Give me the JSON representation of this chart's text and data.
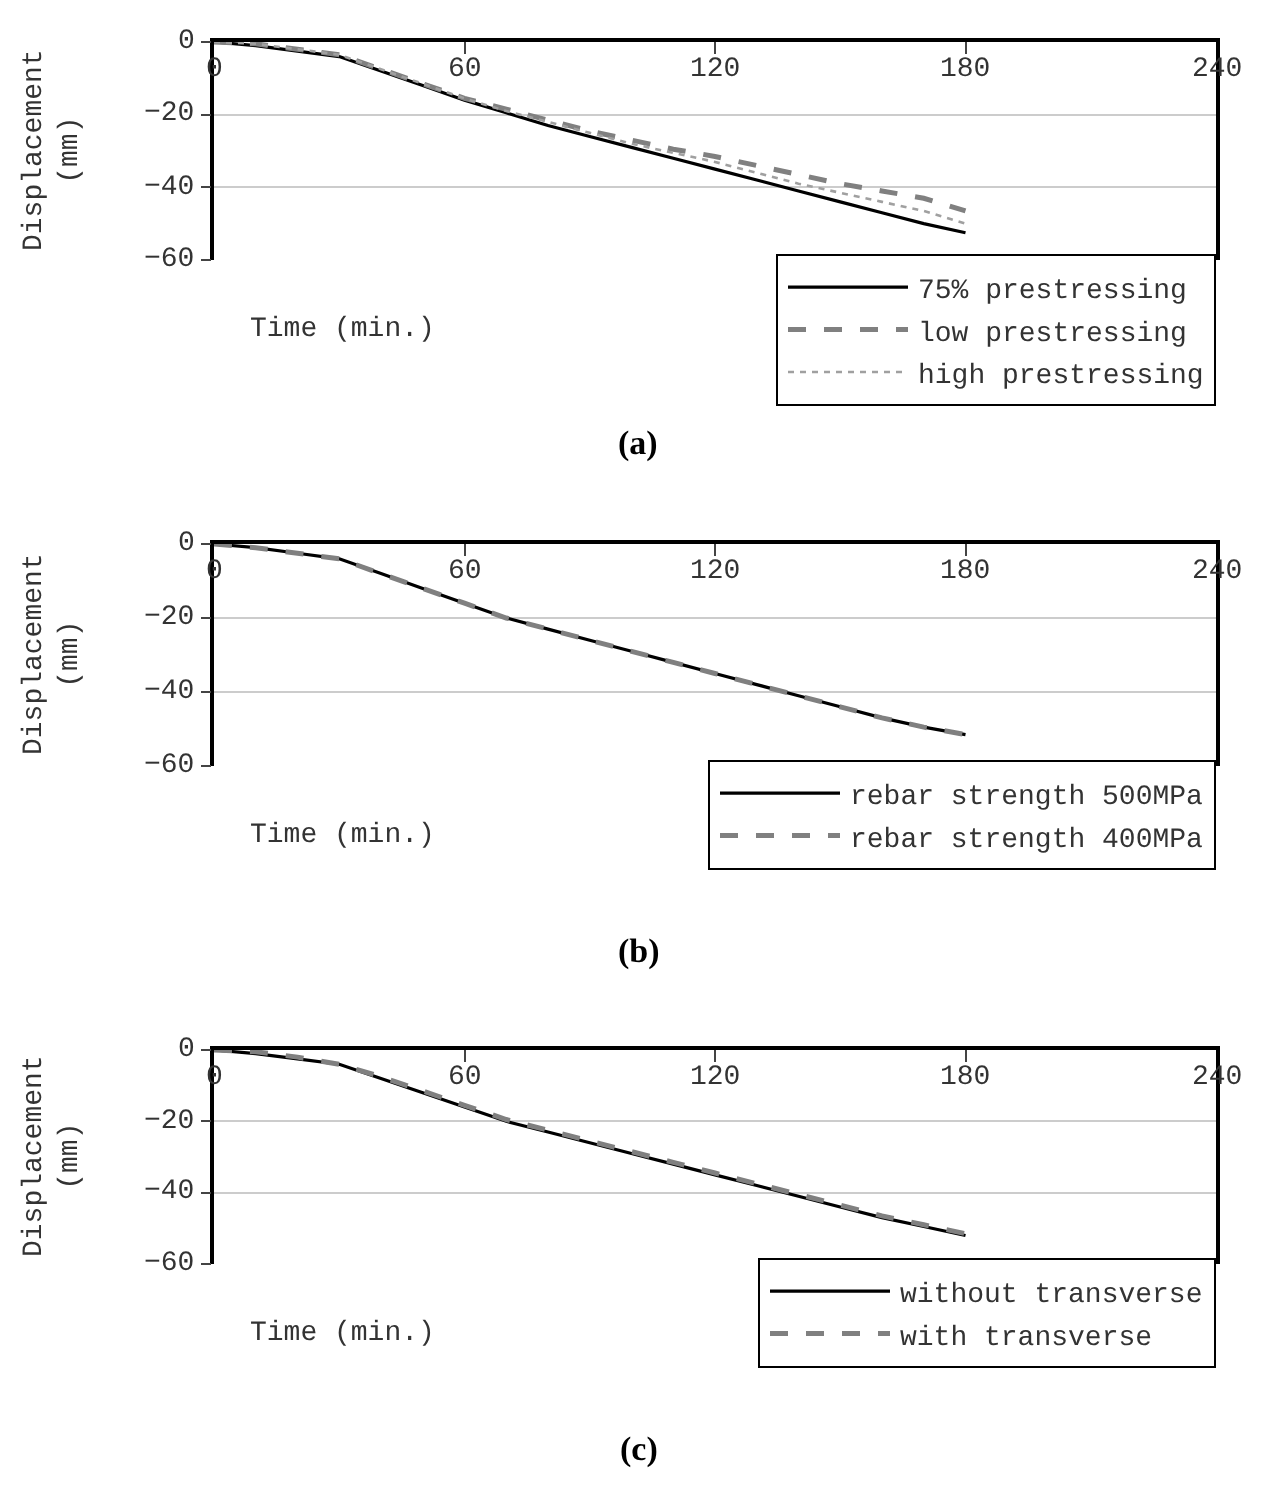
{
  "chart_data": [
    {
      "type": "line",
      "title": "(a)",
      "xlabel": "Time (min.)",
      "ylabel": "Displacement (mm)",
      "xlim": [
        0,
        240
      ],
      "xticks": [
        0,
        60,
        120,
        180,
        240
      ],
      "ylim": [
        -60,
        0
      ],
      "yticks": [
        0,
        -20,
        -40,
        -60
      ],
      "grid": "y",
      "legend": "bottom right",
      "x": [
        0,
        10,
        20,
        30,
        40,
        50,
        60,
        70,
        80,
        90,
        100,
        110,
        120,
        130,
        140,
        150,
        160,
        170,
        180
      ],
      "series": [
        {
          "name": "75% prestressing",
          "color": "#000000",
          "line_style": "solid",
          "values": [
            0,
            -1,
            -2.5,
            -4,
            -8,
            -12,
            -16,
            -19.5,
            -23,
            -26,
            -29,
            -32,
            -35,
            -38,
            -41,
            -44,
            -47,
            -50,
            -52.5
          ]
        },
        {
          "name": "low prestressing",
          "color": "#808080",
          "line_style": "dashed",
          "values": [
            0,
            -0.5,
            -2,
            -3.5,
            -7.5,
            -11.5,
            -15.5,
            -18.5,
            -21.5,
            -24.5,
            -27,
            -29.5,
            -31.5,
            -34,
            -36.5,
            -39,
            -41,
            -43,
            -46.5
          ]
        },
        {
          "name": "high prestressing",
          "color": "#a0a0a0",
          "line_style": "dotted",
          "values": [
            0,
            -0.5,
            -2,
            -3.5,
            -7.5,
            -11.5,
            -15.5,
            -19,
            -22,
            -25,
            -28,
            -30.5,
            -33,
            -36,
            -39,
            -41.5,
            -44,
            -46.5,
            -50
          ]
        }
      ]
    },
    {
      "type": "line",
      "title": "(b)",
      "xlabel": "Time (min.)",
      "ylabel": "Displacement (mm)",
      "xlim": [
        0,
        240
      ],
      "xticks": [
        0,
        60,
        120,
        180,
        240
      ],
      "ylim": [
        -60,
        0
      ],
      "yticks": [
        0,
        -20,
        -40,
        -60
      ],
      "grid": "y",
      "legend": "bottom right",
      "x": [
        0,
        10,
        20,
        30,
        40,
        50,
        60,
        70,
        80,
        90,
        100,
        110,
        120,
        130,
        140,
        150,
        160,
        170,
        180
      ],
      "series": [
        {
          "name": "rebar strength 500MPa",
          "color": "#000000",
          "line_style": "solid",
          "values": [
            0,
            -1,
            -2.5,
            -4,
            -8,
            -12,
            -16,
            -20,
            -23,
            -26,
            -29,
            -32,
            -35,
            -38,
            -41,
            -44,
            -47,
            -49.5,
            -51.5
          ]
        },
        {
          "name": "rebar strength 400MPa",
          "color": "#808080",
          "line_style": "dashed",
          "values": [
            0,
            -1,
            -2.5,
            -4,
            -8,
            -12,
            -16,
            -20,
            -23,
            -26,
            -29,
            -32,
            -35,
            -38,
            -41,
            -44,
            -47,
            -49.5,
            -51.5
          ]
        }
      ]
    },
    {
      "type": "line",
      "title": "(c)",
      "xlabel": "Time (min.)",
      "ylabel": "Displacement (mm)",
      "xlim": [
        0,
        240
      ],
      "xticks": [
        0,
        60,
        120,
        180,
        240
      ],
      "ylim": [
        -60,
        0
      ],
      "yticks": [
        0,
        -20,
        -40,
        -60
      ],
      "grid": "y",
      "legend": "bottom right",
      "x": [
        0,
        10,
        20,
        30,
        40,
        50,
        60,
        70,
        80,
        90,
        100,
        110,
        120,
        130,
        140,
        150,
        160,
        170,
        180
      ],
      "series": [
        {
          "name": "without transverse",
          "color": "#000000",
          "line_style": "solid",
          "values": [
            0,
            -1,
            -2.5,
            -4,
            -8,
            -12,
            -16,
            -20,
            -23,
            -26,
            -29,
            -32,
            -35,
            -38,
            -41,
            -44,
            -47,
            -49.5,
            -52
          ]
        },
        {
          "name": "with transverse",
          "color": "#808080",
          "line_style": "dashed",
          "values": [
            0,
            -0.5,
            -2,
            -4,
            -7.5,
            -11.5,
            -15.5,
            -19.5,
            -22.5,
            -25.5,
            -28.5,
            -31.5,
            -34.5,
            -37.5,
            -40.5,
            -43.5,
            -46.5,
            -49,
            -51.5
          ]
        }
      ]
    }
  ]
}
